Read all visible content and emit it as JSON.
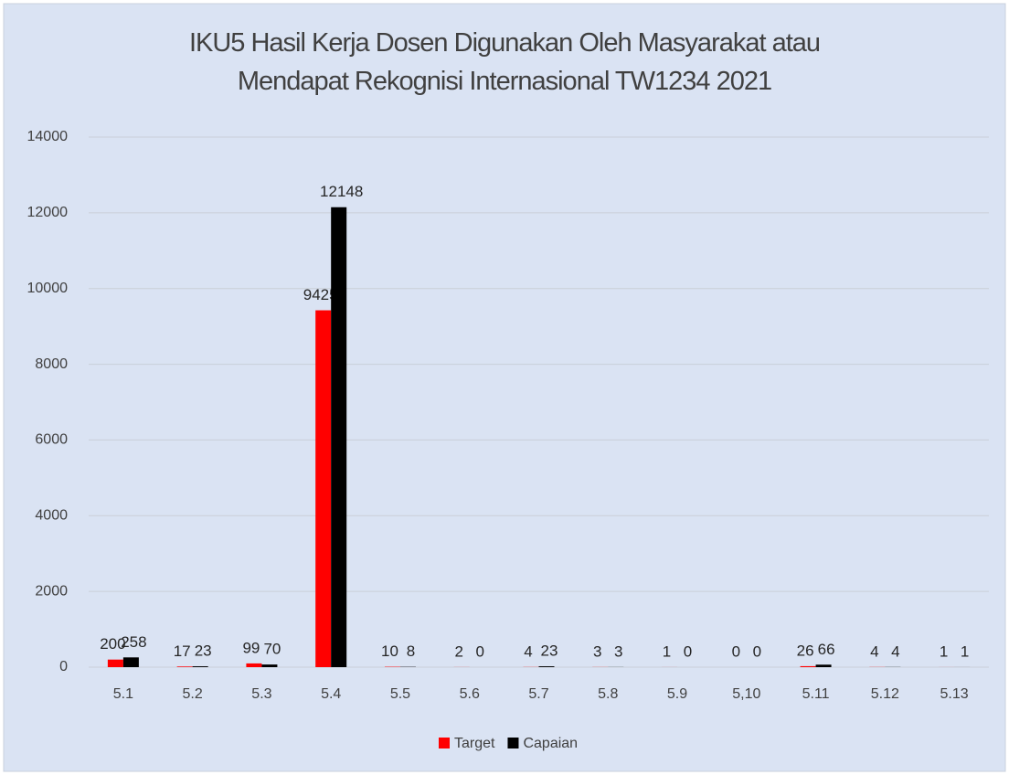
{
  "chart_data": {
    "type": "bar",
    "title": "IKU5 Hasil Kerja Dosen Digunakan Oleh Masyarakat atau Mendapat Rekognisi Internasional TW1234 2021",
    "categories": [
      "5.1",
      "5.2",
      "5.3",
      "5.4",
      "5.5",
      "5.6",
      "5.7",
      "5.8",
      "5.9",
      "5,10",
      "5.11",
      "5.12",
      "5.13"
    ],
    "series": [
      {
        "name": "Target",
        "color": "#ff0000",
        "values": [
          200,
          17,
          99,
          9425,
          10,
          2,
          4,
          3,
          1,
          0,
          26,
          4,
          1
        ]
      },
      {
        "name": "Capaian",
        "color": "#000000",
        "values": [
          258,
          23,
          70,
          12148,
          8,
          0,
          23,
          3,
          0,
          0,
          66,
          4,
          1
        ]
      }
    ],
    "ylim": [
      0,
      14000
    ],
    "yticks": [
      0,
      2000,
      4000,
      6000,
      8000,
      10000,
      12000,
      14000
    ],
    "grid": true,
    "legend": "bottom"
  }
}
